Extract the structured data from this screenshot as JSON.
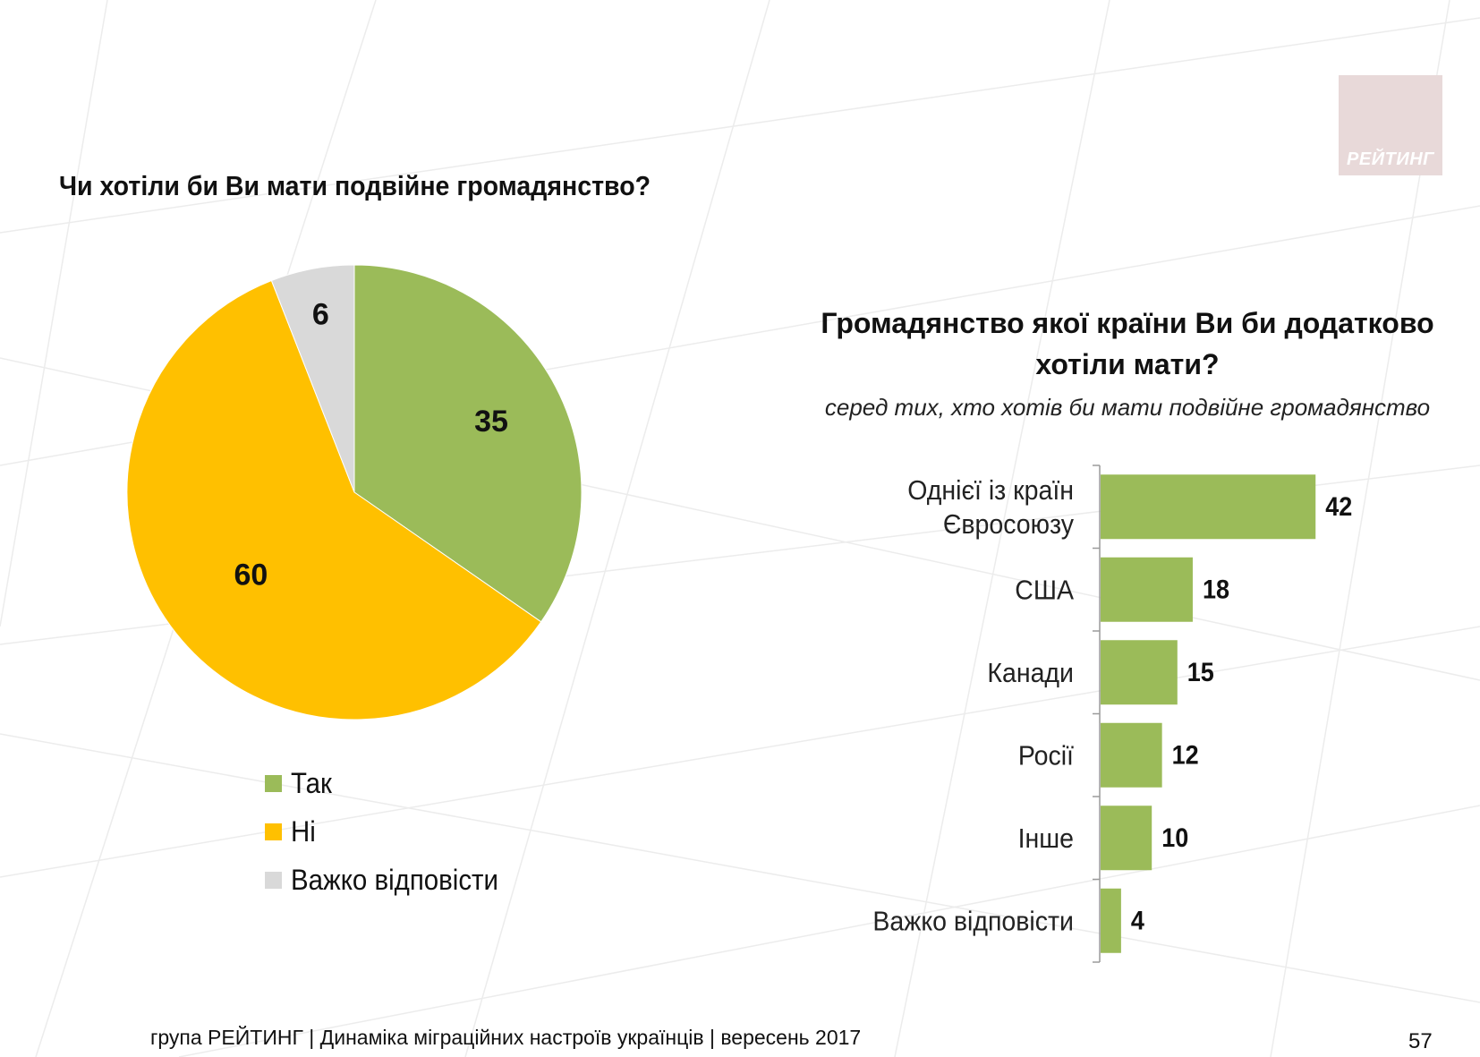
{
  "logo": {
    "text": "РЕЙТИНГ"
  },
  "footer": {
    "text": "група РЕЙТИНГ  | Динаміка міграційних настроїв українців  |  вересень 2017",
    "page_number": "57"
  },
  "chart_data": [
    {
      "type": "pie",
      "title": "Чи хотіли би Ви мати подвійне громадянство?",
      "slices": [
        {
          "label": "Так",
          "value": 35,
          "color": "#9bbb59"
        },
        {
          "label": "Ні",
          "value": 60,
          "color": "#ffc000"
        },
        {
          "label": "Важко відповісти",
          "value": 6,
          "color": "#d9d9d9"
        }
      ],
      "legend": [
        "Так",
        "Ні",
        "Важко відповісти"
      ],
      "legend_position": "bottom"
    },
    {
      "type": "bar",
      "orientation": "horizontal",
      "title": "Громадянство якої країни Ви би додатково хотіли мати?",
      "subtitle": "серед тих, хто хотів би мати подвійне громадянство",
      "categories": [
        [
          "Однієї із країн",
          "Євросоюзу"
        ],
        [
          "США"
        ],
        [
          "Канади"
        ],
        [
          "Росії"
        ],
        [
          "Інше"
        ],
        [
          "Важко відповісти"
        ]
      ],
      "values": [
        42,
        18,
        15,
        12,
        10,
        4
      ],
      "color": "#9bbb59",
      "xlim": [
        0,
        100
      ]
    }
  ]
}
